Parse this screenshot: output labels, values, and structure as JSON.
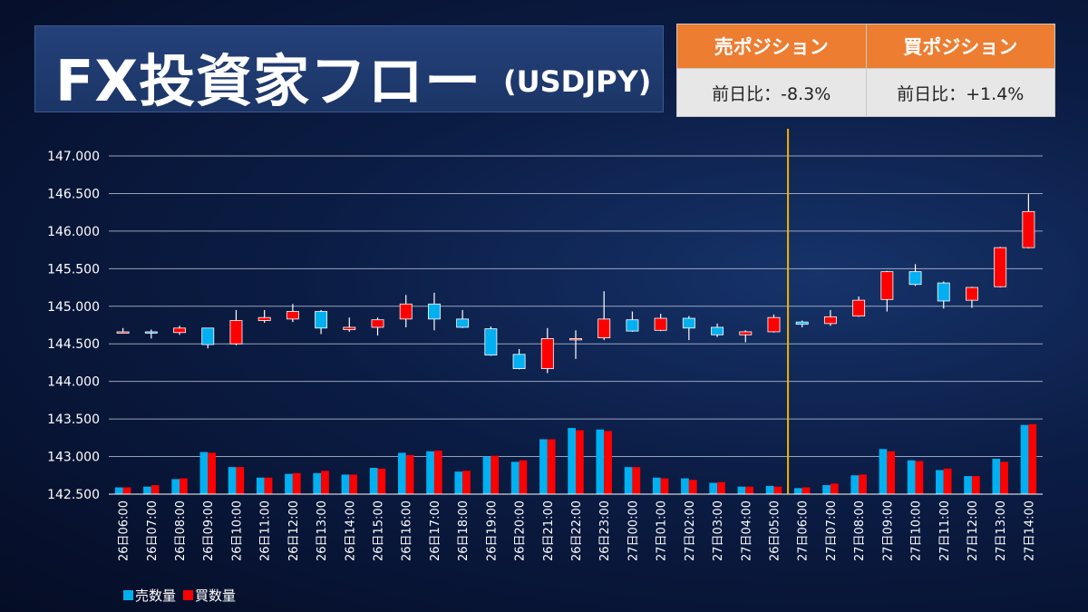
{
  "title": {
    "main": "FX投資家フロー",
    "sub": "(USDJPY)"
  },
  "positions": {
    "sell": {
      "header": "売ポジション",
      "change": "前日比：-8.3%"
    },
    "buy": {
      "header": "買ポジション",
      "change": "前日比：+1.4%"
    }
  },
  "legend": {
    "sell": "売数量",
    "buy": "買数量"
  },
  "colors": {
    "sell": "#00b0f0",
    "buy": "#ff0000",
    "divider": "#f2b400",
    "header_bg": "#ed7d31",
    "title_bg": "#1f3a6e"
  },
  "chart_data": {
    "type": "candlestick+bar",
    "title": "",
    "ylim": [
      142.5,
      147.0
    ],
    "yticks": [
      "147.000",
      "146.500",
      "146.000",
      "145.500",
      "145.000",
      "144.500",
      "144.000",
      "143.500",
      "143.000",
      "142.500"
    ],
    "grid": true,
    "legend_position": "bottom-left",
    "divider_after_category": "26日05:00",
    "categories": [
      "26日06:00",
      "26日07:00",
      "26日08:00",
      "26日09:00",
      "26日10:00",
      "26日11:00",
      "26日12:00",
      "26日13:00",
      "26日14:00",
      "26日15:00",
      "26日16:00",
      "26日17:00",
      "26日18:00",
      "26日19:00",
      "26日20:00",
      "26日21:00",
      "26日22:00",
      "26日23:00",
      "27日00:00",
      "27日01:00",
      "27日02:00",
      "27日03:00",
      "27日04:00",
      "26日05:00",
      "27日06:00",
      "27日07:00",
      "27日08:00",
      "27日09:00",
      "27日10:00",
      "27日11:00",
      "27日12:00",
      "27日13:00",
      "27日14:00"
    ],
    "candles": [
      {
        "open": 144.66,
        "high": 144.71,
        "low": 144.64,
        "close": 144.66
      },
      {
        "open": 144.66,
        "high": 144.69,
        "low": 144.57,
        "close": 144.65
      },
      {
        "open": 144.65,
        "high": 144.74,
        "low": 144.62,
        "close": 144.71
      },
      {
        "open": 144.71,
        "high": 144.71,
        "low": 144.44,
        "close": 144.49
      },
      {
        "open": 144.5,
        "high": 144.95,
        "low": 144.48,
        "close": 144.81
      },
      {
        "open": 144.81,
        "high": 144.95,
        "low": 144.78,
        "close": 144.85
      },
      {
        "open": 144.83,
        "high": 145.03,
        "low": 144.79,
        "close": 144.93
      },
      {
        "open": 144.93,
        "high": 144.95,
        "low": 144.63,
        "close": 144.71
      },
      {
        "open": 144.69,
        "high": 144.85,
        "low": 144.66,
        "close": 144.72
      },
      {
        "open": 144.72,
        "high": 144.85,
        "low": 144.61,
        "close": 144.82
      },
      {
        "open": 144.83,
        "high": 145.15,
        "low": 144.72,
        "close": 145.03
      },
      {
        "open": 145.03,
        "high": 145.18,
        "low": 144.68,
        "close": 144.83
      },
      {
        "open": 144.83,
        "high": 144.95,
        "low": 144.71,
        "close": 144.72
      },
      {
        "open": 144.7,
        "high": 144.73,
        "low": 144.34,
        "close": 144.35
      },
      {
        "open": 144.36,
        "high": 144.43,
        "low": 144.16,
        "close": 144.17
      },
      {
        "open": 144.17,
        "high": 144.71,
        "low": 144.11,
        "close": 144.57
      },
      {
        "open": 144.57,
        "high": 144.68,
        "low": 144.3,
        "close": 144.57
      },
      {
        "open": 144.58,
        "high": 145.2,
        "low": 144.55,
        "close": 144.83
      },
      {
        "open": 144.82,
        "high": 144.93,
        "low": 144.66,
        "close": 144.67
      },
      {
        "open": 144.68,
        "high": 144.9,
        "low": 144.67,
        "close": 144.84
      },
      {
        "open": 144.84,
        "high": 144.87,
        "low": 144.55,
        "close": 144.71
      },
      {
        "open": 144.72,
        "high": 144.77,
        "low": 144.59,
        "close": 144.62
      },
      {
        "open": 144.62,
        "high": 144.68,
        "low": 144.52,
        "close": 144.66
      },
      {
        "open": 144.66,
        "high": 144.89,
        "low": 144.65,
        "close": 144.85
      },
      {
        "open": 144.79,
        "high": 144.81,
        "low": 144.72,
        "close": 144.76
      },
      {
        "open": 144.77,
        "high": 144.95,
        "low": 144.74,
        "close": 144.86
      },
      {
        "open": 144.87,
        "high": 145.13,
        "low": 144.86,
        "close": 145.08
      },
      {
        "open": 145.09,
        "high": 145.47,
        "low": 144.93,
        "close": 145.46
      },
      {
        "open": 145.46,
        "high": 145.56,
        "low": 145.27,
        "close": 145.29
      },
      {
        "open": 145.31,
        "high": 145.33,
        "low": 144.97,
        "close": 145.07
      },
      {
        "open": 145.08,
        "high": 145.26,
        "low": 144.98,
        "close": 145.25
      },
      {
        "open": 145.26,
        "high": 145.79,
        "low": 145.25,
        "close": 145.78
      },
      {
        "open": 145.78,
        "high": 146.49,
        "low": 145.77,
        "close": 146.26
      }
    ],
    "series": [
      {
        "name": "売数量",
        "values": [
          142.59,
          142.6,
          142.7,
          143.06,
          142.86,
          142.72,
          142.77,
          142.78,
          142.76,
          142.85,
          143.05,
          143.07,
          142.8,
          143.0,
          142.93,
          143.23,
          143.38,
          143.36,
          142.86,
          142.72,
          142.71,
          142.65,
          142.6,
          142.61,
          142.58,
          142.62,
          142.75,
          143.1,
          142.95,
          142.82,
          142.74,
          142.97,
          143.42
        ]
      },
      {
        "name": "買数量",
        "values": [
          142.59,
          142.62,
          142.71,
          143.05,
          142.86,
          142.72,
          142.78,
          142.81,
          142.76,
          142.84,
          143.02,
          143.08,
          142.81,
          143.01,
          142.95,
          143.23,
          143.35,
          143.34,
          142.86,
          142.71,
          142.69,
          142.66,
          142.6,
          142.6,
          142.59,
          142.64,
          142.76,
          143.07,
          142.94,
          142.84,
          142.74,
          142.93,
          143.43
        ]
      }
    ]
  }
}
